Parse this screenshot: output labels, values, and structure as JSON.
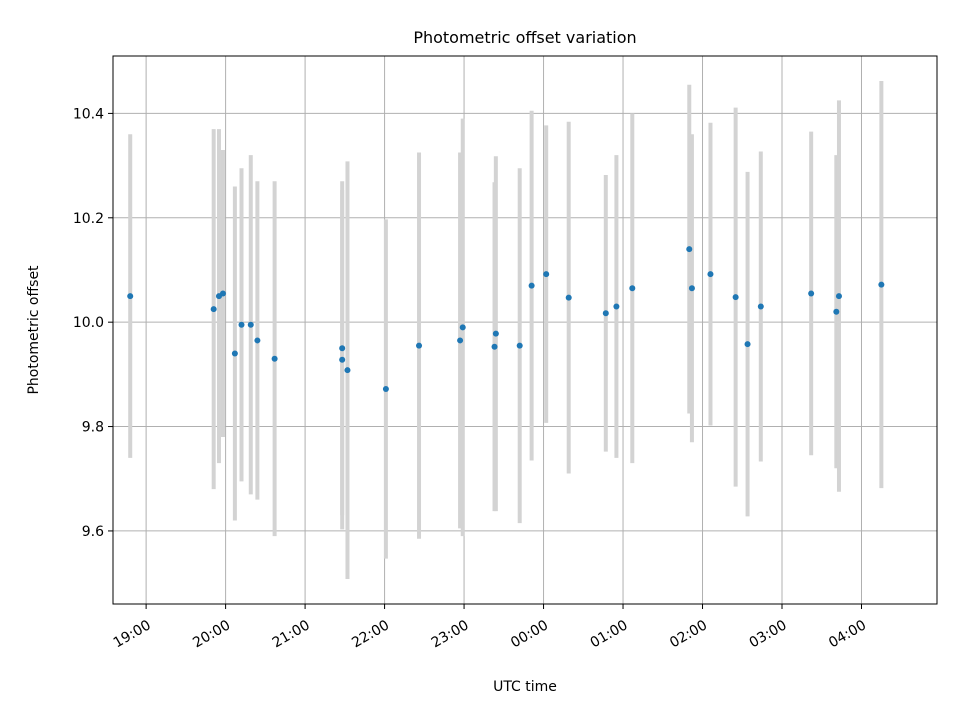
{
  "chart_data": {
    "type": "scatter",
    "title": "Photometric offset variation",
    "xlabel": "UTC time",
    "ylabel": "Photometric offset",
    "grid": true,
    "x_tick_labels": [
      "19:00",
      "20:00",
      "21:00",
      "22:00",
      "23:00",
      "00:00",
      "01:00",
      "02:00",
      "03:00",
      "04:00"
    ],
    "y_tick_labels": [
      "9.6",
      "9.8",
      "10.0",
      "10.2",
      "10.4"
    ],
    "xlim": [
      "18:35",
      "04:57"
    ],
    "ylim": [
      9.46,
      10.51
    ],
    "point_color": "#1f77b4",
    "errorbar_color": "#d3d3d3",
    "points": [
      {
        "x": "18:48",
        "y": 10.05,
        "yerr": 0.31
      },
      {
        "x": "19:51",
        "y": 10.025,
        "yerr": 0.345
      },
      {
        "x": "19:55",
        "y": 10.05,
        "yerr": 0.32
      },
      {
        "x": "19:58",
        "y": 10.055,
        "yerr": 0.275
      },
      {
        "x": "20:07",
        "y": 9.94,
        "yerr": 0.32
      },
      {
        "x": "20:12",
        "y": 9.995,
        "yerr": 0.3
      },
      {
        "x": "20:19",
        "y": 9.995,
        "yerr": 0.325
      },
      {
        "x": "20:24",
        "y": 9.965,
        "yerr": 0.305
      },
      {
        "x": "20:37",
        "y": 9.93,
        "yerr": 0.34
      },
      {
        "x": "21:28",
        "y": 9.95,
        "yerr": 0.32
      },
      {
        "x": "21:28",
        "y": 9.928,
        "yerr": 0.325
      },
      {
        "x": "21:32",
        "y": 9.908,
        "yerr": 0.4
      },
      {
        "x": "22:01",
        "y": 9.872,
        "yerr": 0.325
      },
      {
        "x": "22:26",
        "y": 9.955,
        "yerr": 0.37
      },
      {
        "x": "22:57",
        "y": 9.965,
        "yerr": 0.36
      },
      {
        "x": "22:59",
        "y": 9.99,
        "yerr": 0.4
      },
      {
        "x": "23:23",
        "y": 9.953,
        "yerr": 0.315
      },
      {
        "x": "23:24",
        "y": 9.978,
        "yerr": 0.34
      },
      {
        "x": "23:42",
        "y": 9.955,
        "yerr": 0.34
      },
      {
        "x": "23:51",
        "y": 10.07,
        "yerr": 0.335
      },
      {
        "x": "00:02",
        "y": 10.092,
        "yerr": 0.285
      },
      {
        "x": "00:19",
        "y": 10.047,
        "yerr": 0.337
      },
      {
        "x": "00:47",
        "y": 10.017,
        "yerr": 0.265
      },
      {
        "x": "00:55",
        "y": 10.03,
        "yerr": 0.29
      },
      {
        "x": "01:07",
        "y": 10.065,
        "yerr": 0.335
      },
      {
        "x": "01:50",
        "y": 10.14,
        "yerr": 0.315
      },
      {
        "x": "01:52",
        "y": 10.065,
        "yerr": 0.295
      },
      {
        "x": "02:06",
        "y": 10.092,
        "yerr": 0.29
      },
      {
        "x": "02:25",
        "y": 10.048,
        "yerr": 0.363
      },
      {
        "x": "02:34",
        "y": 9.958,
        "yerr": 0.33
      },
      {
        "x": "02:44",
        "y": 10.03,
        "yerr": 0.297
      },
      {
        "x": "03:22",
        "y": 10.055,
        "yerr": 0.31
      },
      {
        "x": "03:41",
        "y": 10.02,
        "yerr": 0.3
      },
      {
        "x": "03:43",
        "y": 10.05,
        "yerr": 0.375
      },
      {
        "x": "04:15",
        "y": 10.072,
        "yerr": 0.39
      }
    ]
  }
}
